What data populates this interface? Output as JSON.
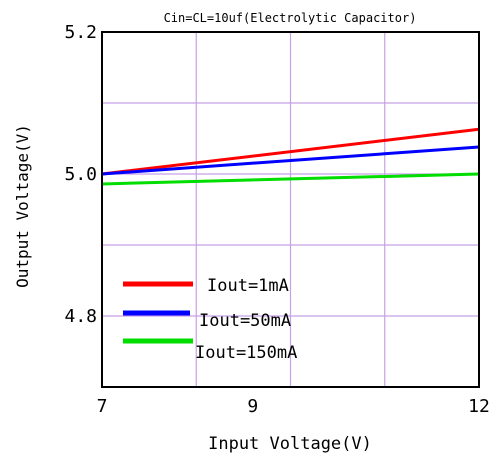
{
  "chart_data": {
    "type": "line",
    "title": "Cin=CL=10uf(Electrolytic Capacitor)",
    "xlabel": "Input Voltage(V)",
    "ylabel": "Output Voltage(V)",
    "xlim": [
      7,
      12
    ],
    "ylim": [
      4.7,
      5.2
    ],
    "x_ticks": [
      "7",
      "9",
      "12"
    ],
    "y_ticks": [
      "5.2",
      "5.0",
      "4.8"
    ],
    "grid": true,
    "legend_position": "bottom-left",
    "series": [
      {
        "name": "Iout=1mA",
        "color": "#ff0000",
        "x": [
          7,
          12
        ],
        "y": [
          5.0,
          5.063
        ]
      },
      {
        "name": "Iout=50mA",
        "color": "#0000ff",
        "x": [
          7,
          12
        ],
        "y": [
          5.0,
          5.038
        ]
      },
      {
        "name": "Iout=150mA",
        "color": "#00dd00",
        "x": [
          7,
          12
        ],
        "y": [
          4.986,
          5.0
        ]
      }
    ]
  }
}
